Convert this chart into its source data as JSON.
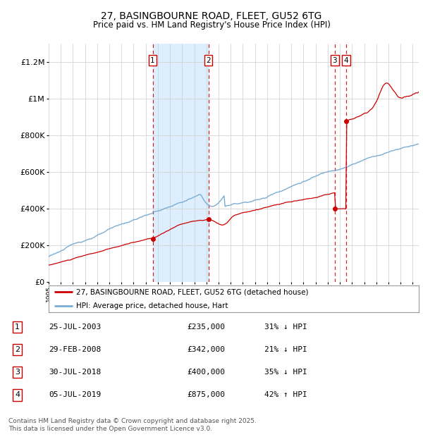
{
  "title": "27, BASINGBOURNE ROAD, FLEET, GU52 6TG",
  "subtitle": "Price paid vs. HM Land Registry's House Price Index (HPI)",
  "bg_color": "#ffffff",
  "plot_bg_color": "#ffffff",
  "grid_color": "#cccccc",
  "hpi_color": "#7aadd4",
  "price_color": "#cc0000",
  "shaded_region": [
    2003.57,
    2008.16
  ],
  "shaded_color": "#ddeeff",
  "transactions": [
    {
      "id": 1,
      "date_year": 2003.57,
      "price": 235000,
      "pct": "31%",
      "dir": "↓",
      "label": "25-JUL-2003",
      "price_label": "£235,000"
    },
    {
      "id": 2,
      "date_year": 2008.16,
      "price": 342000,
      "pct": "21%",
      "dir": "↓",
      "label": "29-FEB-2008",
      "price_label": "£342,000"
    },
    {
      "id": 3,
      "date_year": 2018.57,
      "price": 400000,
      "pct": "35%",
      "dir": "↓",
      "label": "30-JUL-2018",
      "price_label": "£400,000"
    },
    {
      "id": 4,
      "date_year": 2019.51,
      "price": 875000,
      "pct": "42%",
      "dir": "↑",
      "label": "05-JUL-2019",
      "price_label": "£875,000"
    }
  ],
  "legend_entries": [
    "27, BASINGBOURNE ROAD, FLEET, GU52 6TG (detached house)",
    "HPI: Average price, detached house, Hart"
  ],
  "footer": "Contains HM Land Registry data © Crown copyright and database right 2025.\nThis data is licensed under the Open Government Licence v3.0.",
  "ylim": [
    0,
    1300000
  ],
  "yticks": [
    0,
    200000,
    400000,
    600000,
    800000,
    1000000,
    1200000
  ],
  "ytick_labels": [
    "£0",
    "£200K",
    "£400K",
    "£600K",
    "£800K",
    "£1M",
    "£1.2M"
  ],
  "xstart": 1995,
  "xend": 2025.5
}
